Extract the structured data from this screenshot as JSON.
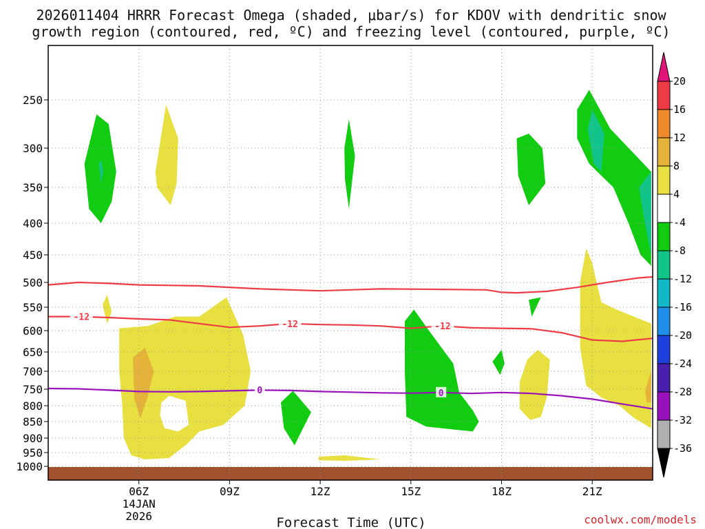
{
  "chart_data": {
    "type": "heatmap",
    "title_lines": [
      "2026011404 HRRR Forecast Omega (shaded, μbar/s) for KDOV with dendritic snow",
      "growth region (contoured, red, ºC) and freezing level (contoured, purple, ºC)"
    ],
    "xlabel": "Forecast Time (UTC)",
    "credit": "coolwx.com/models",
    "x_range_hours": [
      3,
      23
    ],
    "x_ticks": [
      {
        "hour": 6,
        "label": "06Z",
        "sub": [
          "14JAN",
          "2026"
        ]
      },
      {
        "hour": 9,
        "label": "09Z"
      },
      {
        "hour": 12,
        "label": "12Z"
      },
      {
        "hour": 15,
        "label": "15Z"
      },
      {
        "hour": 18,
        "label": "18Z"
      },
      {
        "hour": 21,
        "label": "21Z"
      }
    ],
    "y_ticks_hpa": [
      250,
      300,
      350,
      400,
      450,
      500,
      550,
      600,
      650,
      700,
      750,
      800,
      850,
      900,
      950,
      1000
    ],
    "colorbar": {
      "labels": [
        20,
        16,
        12,
        8,
        4,
        -4,
        -8,
        -12,
        -16,
        -20,
        -24,
        -28,
        -32,
        -36
      ],
      "colors": [
        "#ee3a44",
        "#ee8a2c",
        "#e5b33a",
        "#e8e040",
        "#ffffff",
        "#11cc11",
        "#13c48a",
        "#10b8c8",
        "#1e8ee8",
        "#1f3fdd",
        "#4a1fb0",
        "#9911bb",
        "#b0b0b0"
      ],
      "top_arrow_color": "#e0157a",
      "bottom_arrow_color": "#000000"
    },
    "omega_regions": [
      {
        "name": "green-05z-upper",
        "color": "#11cc11",
        "value": -6,
        "points": [
          [
            4.2,
            320
          ],
          [
            4.6,
            265
          ],
          [
            5.0,
            275
          ],
          [
            5.25,
            330
          ],
          [
            5.1,
            370
          ],
          [
            4.75,
            400
          ],
          [
            4.35,
            380
          ]
        ]
      },
      {
        "name": "teal-05z-core",
        "color": "#13c48a",
        "value": -10,
        "points": [
          [
            4.68,
            320
          ],
          [
            4.75,
            315
          ],
          [
            4.82,
            330
          ],
          [
            4.75,
            345
          ]
        ]
      },
      {
        "name": "yellow-07z-upper",
        "color": "#e8e040",
        "value": 6,
        "points": [
          [
            6.55,
            330
          ],
          [
            6.9,
            255
          ],
          [
            7.3,
            290
          ],
          [
            7.25,
            345
          ],
          [
            7.05,
            375
          ],
          [
            6.6,
            350
          ]
        ]
      },
      {
        "name": "green-13z-upper",
        "color": "#11cc11",
        "value": -6,
        "points": [
          [
            12.8,
            300
          ],
          [
            12.95,
            270
          ],
          [
            13.15,
            310
          ],
          [
            12.95,
            380
          ],
          [
            12.82,
            340
          ]
        ]
      },
      {
        "name": "green-19z-upper",
        "color": "#11cc11",
        "value": -6,
        "points": [
          [
            18.5,
            290
          ],
          [
            18.9,
            285
          ],
          [
            19.35,
            300
          ],
          [
            19.45,
            345
          ],
          [
            18.9,
            375
          ],
          [
            18.55,
            335
          ]
        ]
      },
      {
        "name": "green-21z-upper",
        "color": "#11cc11",
        "value": -6,
        "points": [
          [
            20.5,
            260
          ],
          [
            20.9,
            238
          ],
          [
            21.6,
            280
          ],
          [
            22.95,
            330
          ],
          [
            22.95,
            470
          ],
          [
            22.6,
            450
          ],
          [
            22.2,
            400
          ],
          [
            21.7,
            350
          ],
          [
            20.9,
            320
          ],
          [
            20.5,
            290
          ]
        ]
      },
      {
        "name": "teal-21z-core",
        "color": "#13c48a",
        "value": -10,
        "points": [
          [
            20.85,
            280
          ],
          [
            21.0,
            260
          ],
          [
            21.4,
            285
          ],
          [
            21.3,
            330
          ],
          [
            21.05,
            320
          ]
        ]
      },
      {
        "name": "teal-22z-edge",
        "color": "#13c48a",
        "value": -10,
        "points": [
          [
            22.55,
            350
          ],
          [
            22.95,
            330
          ],
          [
            22.95,
            450
          ],
          [
            22.7,
            390
          ]
        ]
      },
      {
        "name": "yellow-05z-small",
        "color": "#e8e040",
        "value": 6,
        "points": [
          [
            4.8,
            545
          ],
          [
            4.95,
            525
          ],
          [
            5.1,
            560
          ],
          [
            4.95,
            585
          ]
        ]
      },
      {
        "name": "yellow-07z-mid",
        "color": "#e8e040",
        "value": 6,
        "points": [
          [
            5.35,
            595
          ],
          [
            6.3,
            590
          ],
          [
            7.2,
            570
          ],
          [
            8.0,
            570
          ],
          [
            8.9,
            530
          ],
          [
            9.45,
            610
          ],
          [
            9.7,
            700
          ],
          [
            9.5,
            800
          ],
          [
            8.8,
            860
          ],
          [
            8.0,
            880
          ],
          [
            7.6,
            920
          ],
          [
            7.0,
            970
          ],
          [
            6.2,
            975
          ],
          [
            5.75,
            960
          ],
          [
            5.5,
            900
          ],
          [
            5.45,
            800
          ],
          [
            5.35,
            700
          ]
        ]
      },
      {
        "name": "white-hole-07z",
        "color": "#ffffff",
        "value": 0,
        "points": [
          [
            6.75,
            790
          ],
          [
            7.0,
            770
          ],
          [
            7.55,
            785
          ],
          [
            7.65,
            860
          ],
          [
            7.3,
            880
          ],
          [
            6.85,
            870
          ],
          [
            6.7,
            830
          ]
        ]
      },
      {
        "name": "orange-06z",
        "color": "#e5b33a",
        "value": 10,
        "points": [
          [
            5.8,
            665
          ],
          [
            6.2,
            640
          ],
          [
            6.5,
            700
          ],
          [
            6.3,
            770
          ],
          [
            6.05,
            840
          ],
          [
            5.85,
            780
          ]
        ]
      },
      {
        "name": "green-11z-lower",
        "color": "#11cc11",
        "value": -6,
        "points": [
          [
            10.7,
            790
          ],
          [
            11.1,
            755
          ],
          [
            11.7,
            820
          ],
          [
            11.15,
            925
          ],
          [
            10.8,
            870
          ]
        ]
      },
      {
        "name": "yellow-13z-sfc",
        "color": "#e8e040",
        "value": 6,
        "points": [
          [
            11.95,
            965
          ],
          [
            12.8,
            960
          ],
          [
            14.0,
            975
          ],
          [
            12.8,
            980
          ],
          [
            11.95,
            978
          ]
        ]
      },
      {
        "name": "green-15z-lower",
        "color": "#11cc11",
        "value": -6,
        "points": [
          [
            14.8,
            580
          ],
          [
            15.1,
            555
          ],
          [
            15.6,
            600
          ],
          [
            16.4,
            680
          ],
          [
            16.6,
            760
          ],
          [
            17.05,
            815
          ],
          [
            17.25,
            850
          ],
          [
            17.05,
            880
          ],
          [
            16.5,
            875
          ],
          [
            15.5,
            865
          ],
          [
            14.85,
            835
          ],
          [
            14.8,
            700
          ]
        ]
      },
      {
        "name": "green-18z-small",
        "color": "#11cc11",
        "value": -6,
        "points": [
          [
            17.7,
            675
          ],
          [
            18.0,
            645
          ],
          [
            18.1,
            680
          ],
          [
            17.95,
            710
          ]
        ]
      },
      {
        "name": "green-19z-small",
        "color": "#11cc11",
        "value": -6,
        "points": [
          [
            18.9,
            535
          ],
          [
            19.3,
            530
          ],
          [
            19.0,
            570
          ]
        ]
      },
      {
        "name": "yellow-19z-mid",
        "color": "#e8e040",
        "value": 6,
        "points": [
          [
            18.6,
            730
          ],
          [
            18.85,
            670
          ],
          [
            19.2,
            645
          ],
          [
            19.6,
            670
          ],
          [
            19.5,
            775
          ],
          [
            19.3,
            835
          ],
          [
            18.95,
            845
          ],
          [
            18.6,
            810
          ]
        ]
      },
      {
        "name": "yellow-21z-lower",
        "color": "#e8e040",
        "value": 6,
        "points": [
          [
            20.6,
            500
          ],
          [
            20.8,
            440
          ],
          [
            21.0,
            465
          ],
          [
            21.3,
            540
          ],
          [
            21.8,
            555
          ],
          [
            22.95,
            585
          ],
          [
            22.95,
            870
          ],
          [
            22.4,
            840
          ],
          [
            21.9,
            800
          ],
          [
            21.3,
            775
          ],
          [
            20.8,
            740
          ],
          [
            20.6,
            640
          ]
        ]
      },
      {
        "name": "orange-22z-edge",
        "color": "#e5b33a",
        "value": 10,
        "points": [
          [
            22.75,
            755
          ],
          [
            22.95,
            700
          ],
          [
            22.95,
            790
          ],
          [
            22.8,
            790
          ]
        ]
      }
    ],
    "contours": [
      {
        "name": "isotherm-minus10",
        "label": "",
        "color": "#ee3a44",
        "points": [
          [
            3,
            505
          ],
          [
            4,
            500
          ],
          [
            5,
            502
          ],
          [
            6,
            505
          ],
          [
            8,
            507
          ],
          [
            10,
            513
          ],
          [
            12,
            517
          ],
          [
            14,
            513
          ],
          [
            16,
            514
          ],
          [
            17.5,
            515
          ],
          [
            18,
            520
          ],
          [
            18.5,
            521
          ],
          [
            19.5,
            518
          ],
          [
            20.5,
            510
          ],
          [
            21.5,
            500
          ],
          [
            22.5,
            492
          ],
          [
            23,
            490
          ]
        ]
      },
      {
        "name": "isotherm-minus12",
        "label": "-12",
        "color": "#ee3a44",
        "label_positions": [
          [
            4.1,
            570
          ],
          [
            11.0,
            585
          ],
          [
            16.05,
            590
          ]
        ],
        "points": [
          [
            3,
            570
          ],
          [
            4,
            570
          ],
          [
            5,
            572
          ],
          [
            6,
            575
          ],
          [
            7,
            577
          ],
          [
            8,
            585
          ],
          [
            9,
            593
          ],
          [
            10,
            590
          ],
          [
            11,
            585
          ],
          [
            12,
            587
          ],
          [
            13,
            588
          ],
          [
            14,
            590
          ],
          [
            15,
            595
          ],
          [
            16,
            590
          ],
          [
            17,
            594
          ],
          [
            18,
            595
          ],
          [
            19,
            596
          ],
          [
            20,
            605
          ],
          [
            21,
            622
          ],
          [
            22,
            625
          ],
          [
            23,
            618
          ]
        ]
      },
      {
        "name": "freezing-level-0c",
        "label": "0",
        "color": "#9911bb",
        "label_positions": [
          [
            10.0,
            752
          ],
          [
            16.0,
            760
          ]
        ],
        "points": [
          [
            3,
            748
          ],
          [
            4,
            749
          ],
          [
            5,
            753
          ],
          [
            6,
            757
          ],
          [
            7,
            758
          ],
          [
            8,
            757
          ],
          [
            9,
            755
          ],
          [
            10,
            753
          ],
          [
            11,
            754
          ],
          [
            12,
            757
          ],
          [
            13,
            759
          ],
          [
            14,
            761
          ],
          [
            15,
            762
          ],
          [
            16,
            760
          ],
          [
            17,
            763
          ],
          [
            18,
            760
          ],
          [
            19,
            763
          ],
          [
            20,
            770
          ],
          [
            21,
            780
          ],
          [
            22,
            795
          ],
          [
            23,
            810
          ]
        ]
      }
    ],
    "terrain_color": "#a0522d"
  }
}
